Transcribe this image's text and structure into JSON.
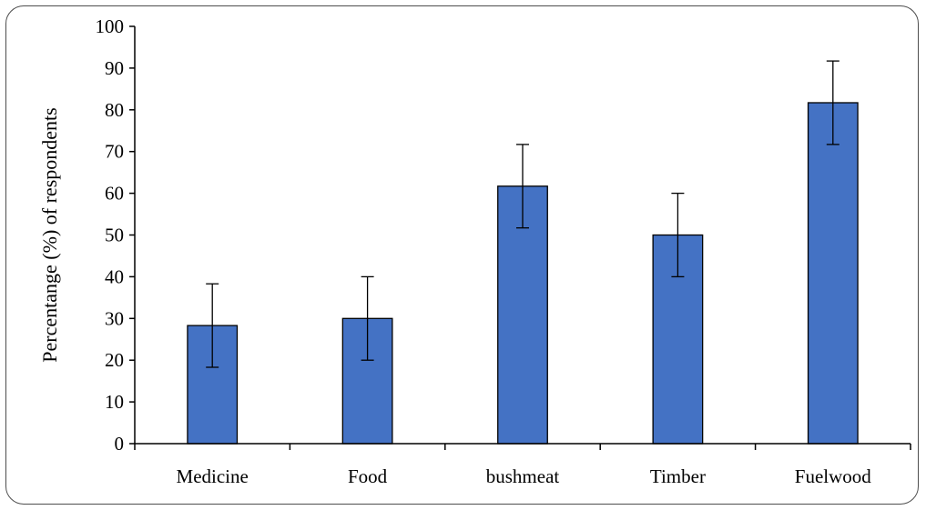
{
  "chart_data": {
    "type": "bar",
    "title": "",
    "xlabel": "",
    "ylabel": "Percentange (%) of respondents",
    "categories": [
      "Medicine",
      "Food",
      "bushmeat",
      "Timber",
      "Fuelwood"
    ],
    "values": [
      28.3,
      30.0,
      61.7,
      50.0,
      81.7
    ],
    "error": [
      10,
      10,
      10,
      10,
      10
    ],
    "ylim": [
      0,
      100
    ],
    "yticks": [
      0,
      10,
      20,
      30,
      40,
      50,
      60,
      70,
      80,
      90,
      100
    ],
    "grid": false,
    "legend": "none",
    "colors": {
      "bar_fill": "#4472c4",
      "bar_stroke": "#000000",
      "axis": "#000000",
      "error_bar": "#000000",
      "frame": "#4d4d4d"
    }
  }
}
